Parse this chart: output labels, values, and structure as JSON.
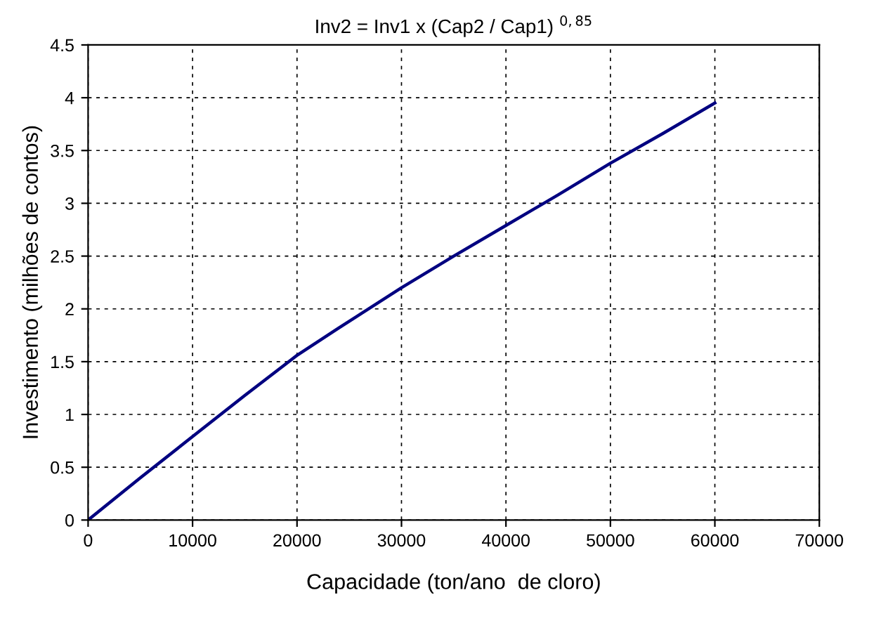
{
  "chart_data": {
    "type": "line",
    "title": "Inv2 = Inv1 x (Cap2 / Cap1) $^{0,85}$",
    "xlabel": "Capacidade (ton/ano  de cloro)",
    "ylabel": "Investimento (milhões de contos)",
    "series": [
      {
        "color": "#000080",
        "x": [
          0,
          5000,
          10000,
          15000,
          20000,
          24000,
          30000,
          35000,
          40000,
          45000,
          50000,
          55000,
          60000
        ],
        "values": [
          0,
          0.4,
          0.79,
          1.18,
          1.56,
          1.82,
          2.2,
          2.5,
          2.79,
          3.08,
          3.38,
          3.66,
          3.95
        ]
      }
    ],
    "xlim": [
      0,
      70000
    ],
    "xticks": [
      0,
      10000,
      20000,
      30000,
      40000,
      50000,
      60000,
      70000
    ],
    "ylim": [
      0,
      4.5
    ],
    "yticks": [
      0,
      0.5,
      1,
      1.5,
      2,
      2.5,
      3,
      3.5,
      4,
      4.5
    ],
    "grid": true,
    "marker": "none",
    "line_style": "solid"
  }
}
